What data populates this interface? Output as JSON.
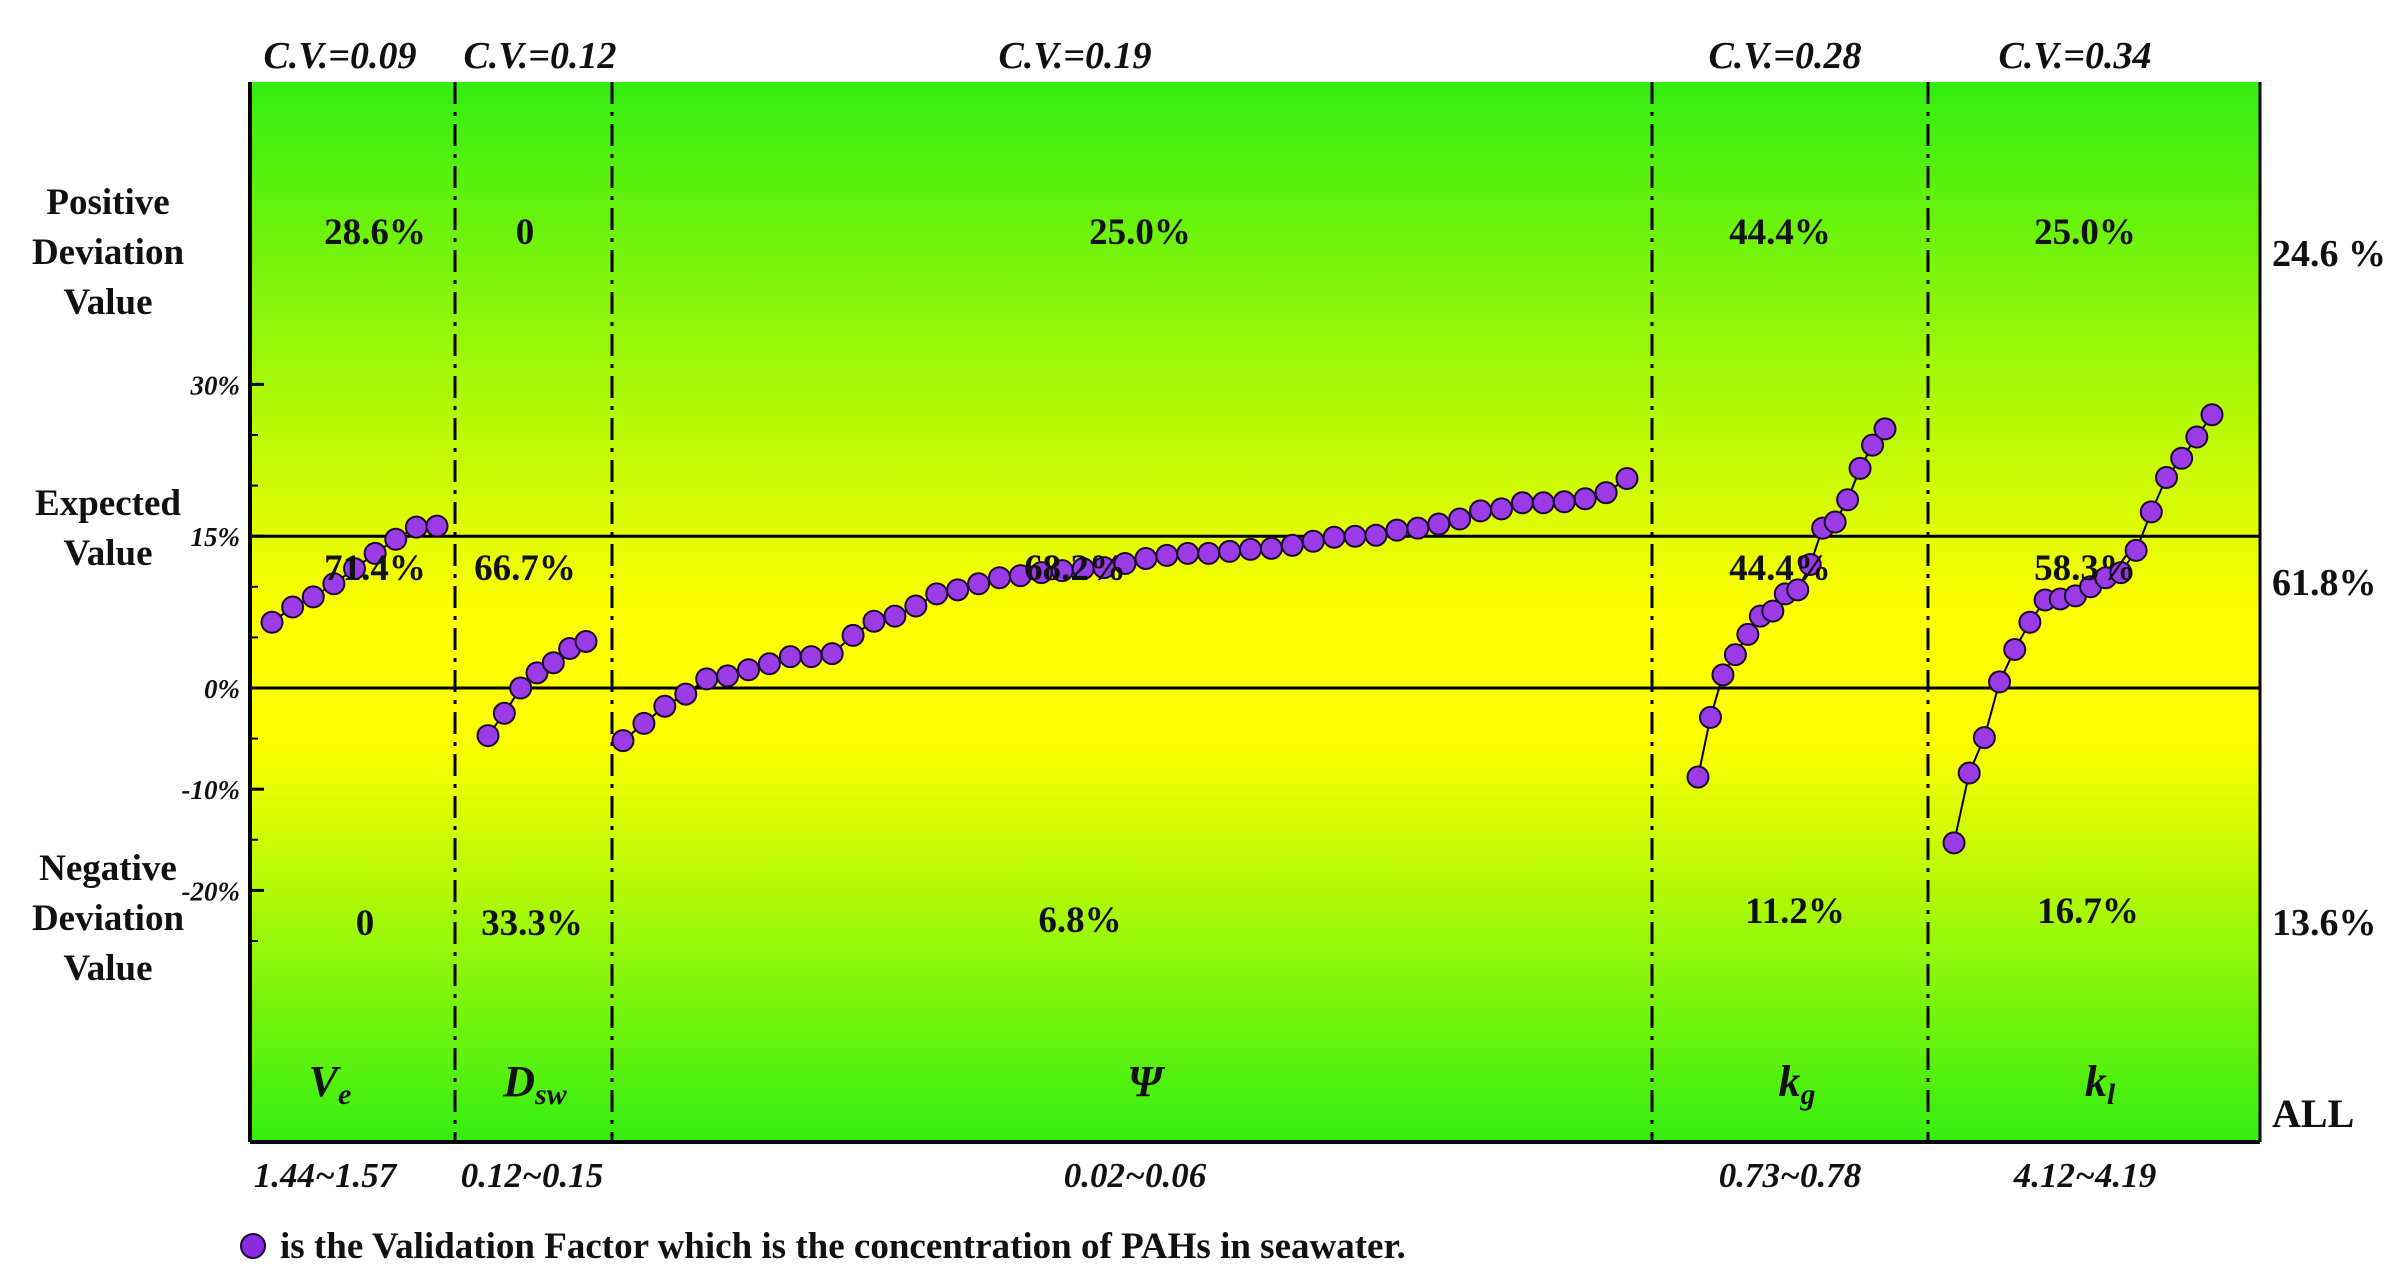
{
  "chart_data": {
    "type": "scatter",
    "y_axis": {
      "ticks": [
        "30%",
        "15%",
        "0%",
        "-10%",
        "-20%"
      ],
      "ylim": [
        -0.3,
        0.3
      ],
      "unit": "percent"
    },
    "zone_lines": [
      0.15,
      0.0
    ],
    "zone_labels_left": [
      "Positive\nDeviation\nValue",
      "Expected\nValue",
      "Negative\nDeviation\nValue"
    ],
    "background_gradient": [
      "#33ee11",
      "#ffff00",
      "#33ee11"
    ],
    "marker_color": "#9a3be6",
    "marker_edge": "#1a0a33",
    "groups": [
      {
        "cv": "C.V.=0.09",
        "symbol": "V",
        "subscript": "e",
        "range": "1.44~1.57",
        "pos": "28.6%",
        "exp": "71.4%",
        "neg": "0",
        "values": [
          0.065,
          0.08,
          0.09,
          0.103,
          0.118,
          0.133,
          0.147,
          0.159,
          0.16
        ]
      },
      {
        "cv": "C.V.=0.12",
        "symbol": "D",
        "subscript": "sw",
        "range": "0.12~0.15",
        "pos": "0",
        "exp": "66.7%",
        "neg": "33.3%",
        "values": [
          -0.047,
          -0.025,
          0.0,
          0.015,
          0.025,
          0.039,
          0.046
        ]
      },
      {
        "cv": "C.V.=0.19",
        "symbol": "Ψ",
        "subscript": "",
        "range": "0.02~0.06",
        "pos": "25.0%",
        "exp": "68.2%",
        "neg": "6.8%",
        "values": [
          -0.052,
          -0.035,
          -0.018,
          -0.006,
          0.009,
          0.012,
          0.018,
          0.024,
          0.031,
          0.031,
          0.034,
          0.052,
          0.066,
          0.071,
          0.081,
          0.093,
          0.097,
          0.103,
          0.109,
          0.111,
          0.114,
          0.116,
          0.118,
          0.119,
          0.123,
          0.128,
          0.131,
          0.133,
          0.133,
          0.135,
          0.137,
          0.138,
          0.141,
          0.145,
          0.149,
          0.15,
          0.151,
          0.156,
          0.158,
          0.162,
          0.167,
          0.175,
          0.177,
          0.183,
          0.183,
          0.184,
          0.187,
          0.193,
          0.207
        ]
      },
      {
        "cv": "C.V.=0.28",
        "symbol": "k",
        "subscript": "g",
        "range": "0.73~0.78",
        "pos": "44.4%",
        "exp": "44.4%",
        "neg": "11.2%",
        "values": [
          -0.088,
          -0.029,
          0.013,
          0.033,
          0.053,
          0.071,
          0.076,
          0.093,
          0.097,
          0.122,
          0.158,
          0.164,
          0.186,
          0.217,
          0.24,
          0.256
        ]
      },
      {
        "cv": "C.V.=0.34",
        "symbol": "k",
        "subscript": "l",
        "range": "4.12~4.19",
        "pos": "25.0%",
        "exp": "58.3%",
        "neg": "16.7%",
        "values": [
          -0.153,
          -0.084,
          -0.049,
          0.006,
          0.038,
          0.065,
          0.087,
          0.088,
          0.091,
          0.1,
          0.109,
          0.114,
          0.136,
          0.174,
          0.208,
          0.227,
          0.248,
          0.27
        ]
      }
    ],
    "all": {
      "label": "ALL",
      "pos": "24.6 %",
      "exp": "61.8%",
      "neg": "13.6%"
    }
  },
  "legend": {
    "text": "is the Validation Factor which is the concentration of PAHs in seawater."
  }
}
